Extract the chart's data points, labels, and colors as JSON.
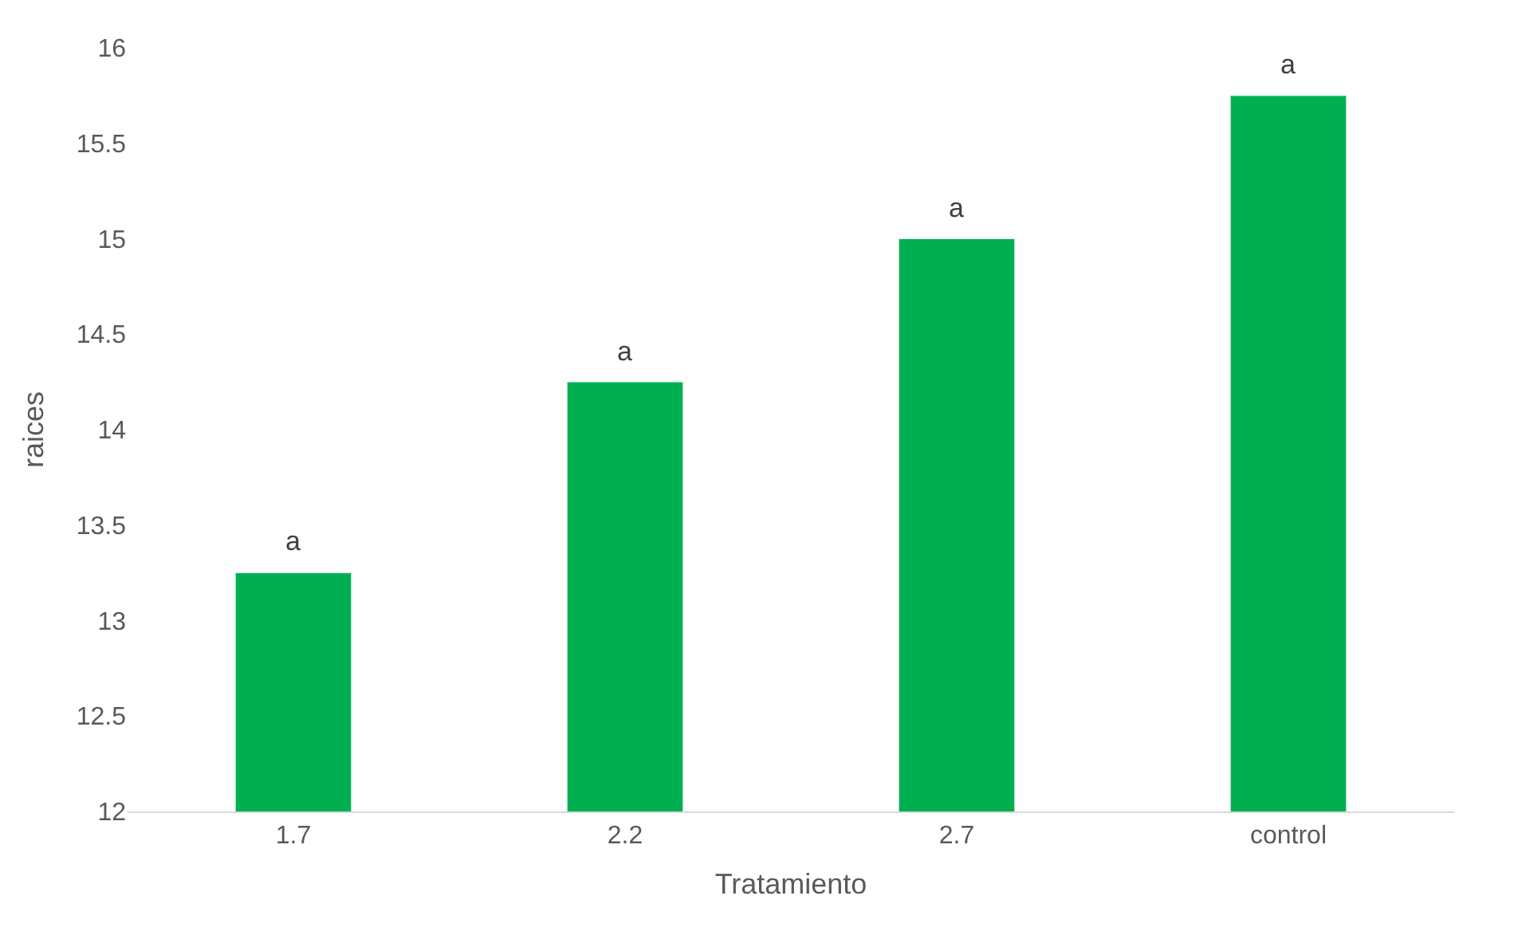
{
  "chart_data": {
    "type": "bar",
    "xlabel": "Tratamiento",
    "ylabel": "raices",
    "categories": [
      "1.7",
      "2.2",
      "2.7",
      "control"
    ],
    "values": [
      13.25,
      14.25,
      15.0,
      15.75
    ],
    "colors": [
      "#00b050",
      "#00b050",
      "#00b050",
      "#00b050"
    ],
    "ylim": [
      12,
      16
    ],
    "yticks": [
      12,
      12.5,
      13,
      13.5,
      14,
      14.5,
      15,
      15.5,
      16
    ],
    "grid": false,
    "annotations": [
      {
        "text": "a",
        "x": "1.7",
        "y": 13.25
      },
      {
        "text": "a",
        "x": "2.2",
        "y": 14.25
      },
      {
        "text": "a",
        "x": "2.7",
        "y": 15.0
      },
      {
        "text": "a",
        "x": "control",
        "y": 15.75
      }
    ]
  }
}
